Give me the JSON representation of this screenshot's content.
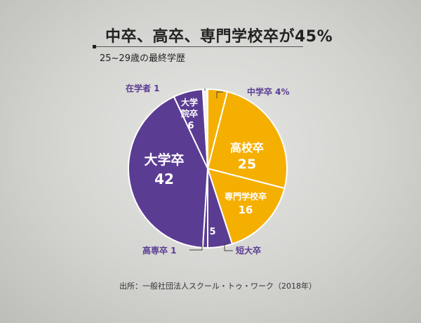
{
  "title": "中卒、高卒、専門学校卒が45%",
  "subtitle": "25~29歳の最終学歴",
  "source": "出所：一般社団法人スクール・トゥ・ワーク（2018年）",
  "chart_data": {
    "type": "pie",
    "unit": "%",
    "slices": [
      {
        "name": "中学卒",
        "value": 4,
        "color": "#f5af00",
        "label_text": "中学卒 4%"
      },
      {
        "name": "高校卒",
        "value": 25,
        "color": "#f5af00",
        "label_text": "高校卒",
        "value_text": "25"
      },
      {
        "name": "専門学校卒",
        "value": 16,
        "color": "#f5af00",
        "label_text": "専門学校卒",
        "value_text": "16"
      },
      {
        "name": "短大卒",
        "value": 5,
        "color": "#5b3c93",
        "label_text": "短大卒",
        "value_text": "5"
      },
      {
        "name": "高専卒",
        "value": 1,
        "color": "#5b3c93",
        "label_text": "高専卒 1"
      },
      {
        "name": "大学卒",
        "value": 42,
        "color": "#5b3c93",
        "label_text": "大学卒",
        "value_text": "42"
      },
      {
        "name": "大学院卒",
        "value": 6,
        "color": "#5b3c93",
        "label_text": "大学院卒",
        "label_lines": [
          "大学",
          "院卒"
        ],
        "value_text": "6"
      },
      {
        "name": "在学者",
        "value": 1,
        "color": "#f2f2f2",
        "label_text": "在学者 1"
      }
    ],
    "label_colors": {
      "inner": "#ffffff",
      "outer": "#5b3c93"
    }
  }
}
